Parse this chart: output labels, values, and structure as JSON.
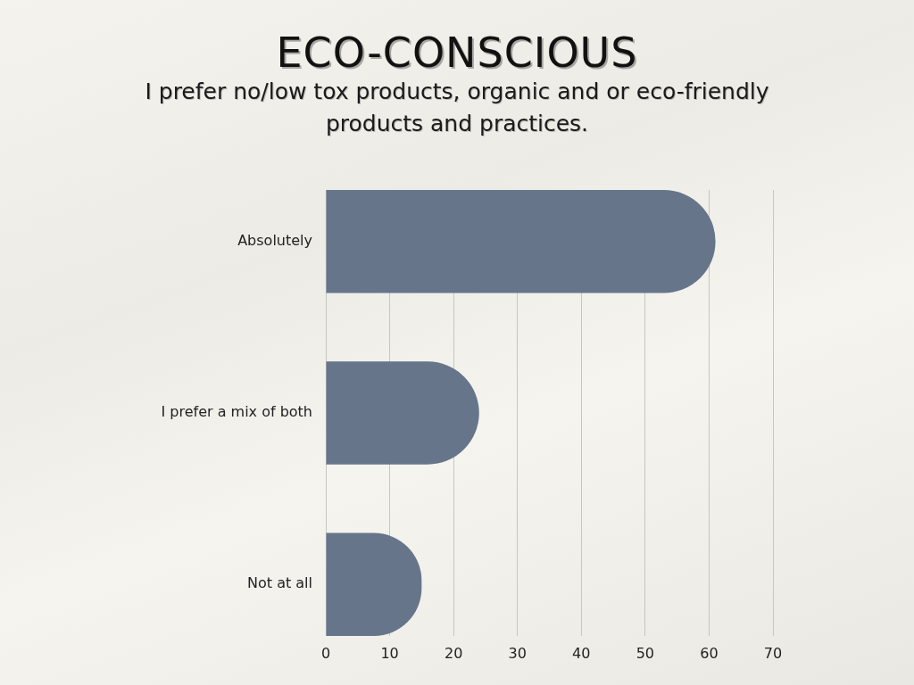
{
  "chart_data": {
    "type": "bar",
    "orientation": "horizontal",
    "title": "ECO-CONSCIOUS",
    "subtitle": "I prefer no/low tox products, organic and or eco-friendly products and practices.",
    "categories": [
      "Absolutely",
      "I prefer a mix of both",
      "Not at all"
    ],
    "values": [
      61,
      24,
      15
    ],
    "color": "#66758a",
    "xlim": [
      0,
      70
    ],
    "xticks": [
      0,
      10,
      20,
      30,
      40,
      50,
      60,
      70
    ],
    "grid": "x"
  }
}
